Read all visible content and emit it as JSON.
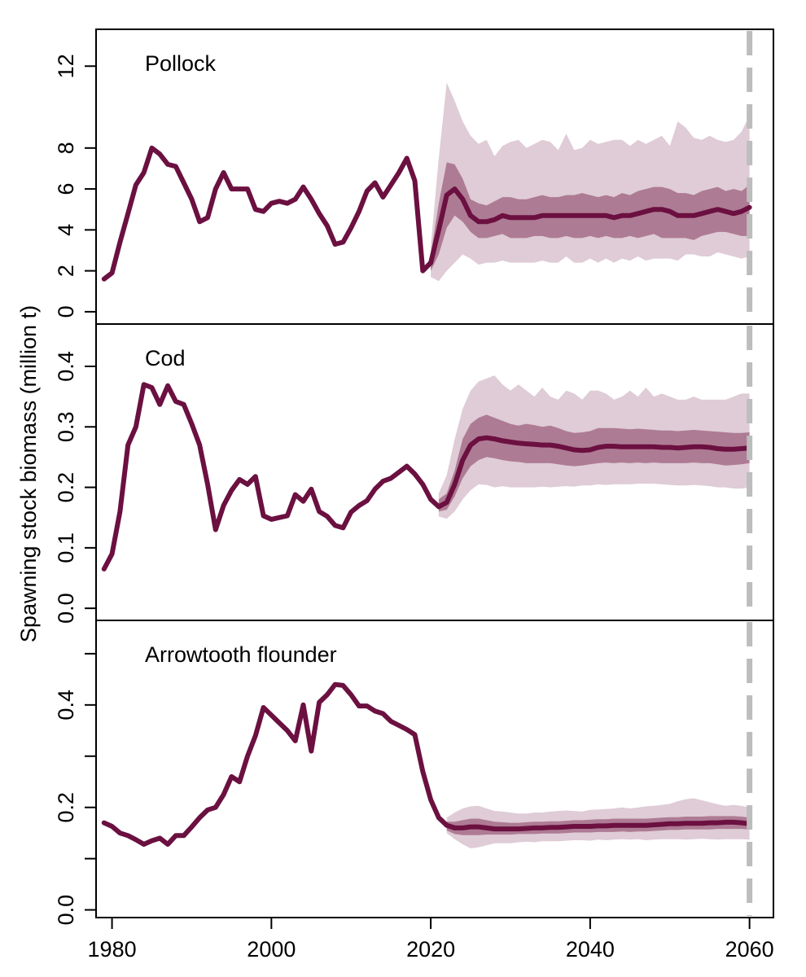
{
  "y_axis_label": "Spawning stock biomass (million t)",
  "colors": {
    "line": "#6b1040",
    "band_inner": "#ae7b94",
    "band_outer": "#dfccd6",
    "vline": "#bdbdbd",
    "axis": "#000000"
  },
  "chart_data": [
    {
      "type": "line",
      "title": "Pollock",
      "xlim": [
        1978,
        2063
      ],
      "ylim": [
        -0.6,
        13.8
      ],
      "x_ticks": [
        1980,
        2000,
        2020,
        2040,
        2060
      ],
      "x_tick_labels": [],
      "y_ticks": [
        0,
        2,
        4,
        6,
        8,
        12
      ],
      "y_tick_labels": [
        "0",
        "2",
        "4",
        "6",
        "8",
        "12"
      ],
      "vline": 2060,
      "historical": {
        "x": [
          1979,
          1980,
          1981,
          1982,
          1983,
          1984,
          1985,
          1986,
          1987,
          1988,
          1989,
          1990,
          1991,
          1992,
          1993,
          1994,
          1995,
          1996,
          1997,
          1998,
          1999,
          2000,
          2001,
          2002,
          2003,
          2004,
          2005,
          2006,
          2007,
          2008,
          2009,
          2010,
          2011,
          2012,
          2013,
          2014,
          2015,
          2016,
          2017,
          2018,
          2019,
          2020
        ],
        "y": [
          1.6,
          1.9,
          3.4,
          4.8,
          6.2,
          6.8,
          8.0,
          7.7,
          7.2,
          7.1,
          6.3,
          5.5,
          4.4,
          4.6,
          6.0,
          6.8,
          6.0,
          6.0,
          6.0,
          5.0,
          4.9,
          5.3,
          5.4,
          5.3,
          5.5,
          6.1,
          5.5,
          4.8,
          4.2,
          3.3,
          3.4,
          4.1,
          4.9,
          5.9,
          6.3,
          5.6,
          6.2,
          6.8,
          7.5,
          6.4,
          2.0,
          2.4
        ]
      },
      "projection": {
        "x": [
          2020,
          2021,
          2022,
          2023,
          2024,
          2025,
          2026,
          2027,
          2028,
          2029,
          2030,
          2031,
          2032,
          2033,
          2034,
          2035,
          2036,
          2037,
          2038,
          2039,
          2040,
          2041,
          2042,
          2043,
          2044,
          2045,
          2046,
          2047,
          2048,
          2049,
          2050,
          2051,
          2052,
          2053,
          2054,
          2055,
          2056,
          2057,
          2058,
          2059,
          2060
        ],
        "median": [
          2.4,
          4.0,
          5.7,
          6.0,
          5.5,
          4.7,
          4.4,
          4.4,
          4.5,
          4.7,
          4.6,
          4.6,
          4.6,
          4.6,
          4.7,
          4.7,
          4.7,
          4.7,
          4.7,
          4.7,
          4.7,
          4.7,
          4.7,
          4.6,
          4.7,
          4.7,
          4.8,
          4.9,
          5.0,
          5.0,
          4.9,
          4.7,
          4.7,
          4.7,
          4.8,
          4.9,
          5.0,
          4.9,
          4.8,
          4.9,
          5.1
        ],
        "lower_inner": [
          2.0,
          2.8,
          4.1,
          4.7,
          4.4,
          3.9,
          3.6,
          3.6,
          3.7,
          3.8,
          3.6,
          3.6,
          3.6,
          3.7,
          3.7,
          3.6,
          3.6,
          3.7,
          3.6,
          3.6,
          3.7,
          3.6,
          3.7,
          3.6,
          3.6,
          3.7,
          3.6,
          3.7,
          3.8,
          3.6,
          3.6,
          3.6,
          3.6,
          3.5,
          3.7,
          3.8,
          3.9,
          3.9,
          3.8,
          3.7,
          3.7
        ],
        "upper_inner": [
          2.8,
          5.3,
          7.3,
          7.2,
          6.5,
          5.5,
          5.3,
          5.2,
          5.4,
          5.6,
          5.6,
          5.5,
          5.5,
          5.6,
          5.7,
          5.6,
          5.6,
          5.7,
          5.7,
          5.8,
          5.7,
          5.6,
          5.7,
          5.6,
          5.8,
          5.7,
          5.9,
          6.0,
          6.1,
          6.1,
          6.0,
          5.8,
          5.8,
          5.7,
          5.9,
          6.0,
          6.1,
          5.9,
          6.0,
          5.9,
          6.2
        ],
        "lower_outer": [
          1.7,
          1.5,
          2.0,
          2.4,
          2.8,
          2.6,
          2.3,
          2.4,
          2.4,
          2.5,
          2.4,
          2.4,
          2.4,
          2.4,
          2.5,
          2.4,
          2.4,
          2.7,
          2.4,
          2.4,
          2.6,
          2.4,
          2.6,
          2.4,
          2.6,
          2.5,
          2.7,
          2.5,
          2.6,
          2.6,
          2.6,
          2.5,
          2.8,
          2.8,
          2.7,
          2.7,
          2.9,
          2.8,
          2.7,
          2.6,
          2.7
        ],
        "upper_outer": [
          3.2,
          7.5,
          11.2,
          10.3,
          9.3,
          8.6,
          8.2,
          8.4,
          7.6,
          8.1,
          8.3,
          8.4,
          8.0,
          8.2,
          8.4,
          8.3,
          7.9,
          8.7,
          7.9,
          8.0,
          8.4,
          8.2,
          8.3,
          8.4,
          8.4,
          8.1,
          8.4,
          8.2,
          8.4,
          8.6,
          8.1,
          9.3,
          9.0,
          8.5,
          8.4,
          8.6,
          8.4,
          8.3,
          8.4,
          8.8,
          9.6
        ]
      }
    },
    {
      "type": "line",
      "title": "Cod",
      "xlim": [
        1978,
        2063
      ],
      "ylim": [
        -0.02,
        0.47
      ],
      "x_ticks": [
        1980,
        2000,
        2020,
        2040,
        2060
      ],
      "x_tick_labels": [],
      "y_ticks": [
        0.0,
        0.1,
        0.2,
        0.3,
        0.4
      ],
      "y_tick_labels": [
        "0.0",
        "0.1",
        "0.2",
        "0.3",
        "0.4"
      ],
      "vline": 2060,
      "historical": {
        "x": [
          1979,
          1980,
          1981,
          1982,
          1983,
          1984,
          1985,
          1986,
          1987,
          1988,
          1989,
          1990,
          1991,
          1992,
          1993,
          1994,
          1995,
          1996,
          1997,
          1998,
          1999,
          2000,
          2001,
          2002,
          2003,
          2004,
          2005,
          2006,
          2007,
          2008,
          2009,
          2010,
          2011,
          2012,
          2013,
          2014,
          2015,
          2016,
          2017,
          2018,
          2019,
          2020,
          2021
        ],
        "y": [
          0.065,
          0.09,
          0.16,
          0.27,
          0.3,
          0.37,
          0.365,
          0.337,
          0.368,
          0.342,
          0.337,
          0.305,
          0.27,
          0.205,
          0.13,
          0.17,
          0.195,
          0.213,
          0.205,
          0.218,
          0.153,
          0.147,
          0.15,
          0.153,
          0.188,
          0.177,
          0.197,
          0.16,
          0.152,
          0.137,
          0.133,
          0.159,
          0.17,
          0.178,
          0.197,
          0.21,
          0.215,
          0.225,
          0.235,
          0.222,
          0.205,
          0.18,
          0.168
        ]
      },
      "projection": {
        "x": [
          2021,
          2022,
          2023,
          2024,
          2025,
          2026,
          2027,
          2028,
          2029,
          2030,
          2031,
          2032,
          2033,
          2034,
          2035,
          2036,
          2037,
          2038,
          2039,
          2040,
          2041,
          2042,
          2043,
          2044,
          2045,
          2046,
          2047,
          2048,
          2049,
          2050,
          2051,
          2052,
          2053,
          2054,
          2055,
          2056,
          2057,
          2058,
          2059,
          2060
        ],
        "median": [
          0.168,
          0.175,
          0.205,
          0.245,
          0.27,
          0.28,
          0.282,
          0.28,
          0.277,
          0.275,
          0.273,
          0.272,
          0.271,
          0.27,
          0.27,
          0.268,
          0.265,
          0.262,
          0.261,
          0.262,
          0.266,
          0.268,
          0.268,
          0.267,
          0.267,
          0.267,
          0.267,
          0.267,
          0.266,
          0.266,
          0.265,
          0.266,
          0.267,
          0.267,
          0.266,
          0.264,
          0.263,
          0.263,
          0.264,
          0.265
        ],
        "lower_inner": [
          0.16,
          0.163,
          0.185,
          0.215,
          0.235,
          0.245,
          0.25,
          0.248,
          0.245,
          0.243,
          0.242,
          0.24,
          0.24,
          0.24,
          0.24,
          0.238,
          0.236,
          0.235,
          0.236,
          0.238,
          0.24,
          0.241,
          0.24,
          0.241,
          0.24,
          0.241,
          0.24,
          0.241,
          0.24,
          0.24,
          0.24,
          0.24,
          0.241,
          0.24,
          0.24,
          0.238,
          0.236,
          0.237,
          0.238,
          0.24
        ],
        "upper_inner": [
          0.18,
          0.19,
          0.228,
          0.28,
          0.305,
          0.315,
          0.32,
          0.315,
          0.31,
          0.305,
          0.302,
          0.305,
          0.303,
          0.3,
          0.302,
          0.298,
          0.293,
          0.29,
          0.291,
          0.293,
          0.298,
          0.298,
          0.298,
          0.297,
          0.296,
          0.297,
          0.296,
          0.295,
          0.294,
          0.294,
          0.293,
          0.294,
          0.295,
          0.294,
          0.293,
          0.292,
          0.291,
          0.29,
          0.29,
          0.291
        ],
        "lower_outer": [
          0.152,
          0.148,
          0.16,
          0.18,
          0.195,
          0.205,
          0.204,
          0.2,
          0.202,
          0.2,
          0.2,
          0.2,
          0.2,
          0.201,
          0.2,
          0.201,
          0.202,
          0.201,
          0.203,
          0.203,
          0.205,
          0.204,
          0.205,
          0.205,
          0.205,
          0.206,
          0.206,
          0.206,
          0.205,
          0.204,
          0.203,
          0.203,
          0.204,
          0.203,
          0.202,
          0.2,
          0.2,
          0.198,
          0.198,
          0.2
        ],
        "upper_outer": [
          0.19,
          0.22,
          0.28,
          0.33,
          0.36,
          0.375,
          0.38,
          0.385,
          0.37,
          0.36,
          0.37,
          0.36,
          0.35,
          0.365,
          0.35,
          0.345,
          0.36,
          0.355,
          0.345,
          0.36,
          0.36,
          0.355,
          0.345,
          0.35,
          0.36,
          0.35,
          0.365,
          0.35,
          0.355,
          0.35,
          0.345,
          0.345,
          0.35,
          0.345,
          0.345,
          0.345,
          0.345,
          0.35,
          0.355,
          0.355
        ]
      }
    },
    {
      "type": "line",
      "title": "Arrowtooth flounder",
      "xlim": [
        1978,
        2063
      ],
      "ylim": [
        -0.015,
        0.565
      ],
      "x_ticks": [
        1980,
        2000,
        2020,
        2040,
        2060
      ],
      "x_tick_labels": [
        "1980",
        "2000",
        "2020",
        "2040",
        "2060"
      ],
      "y_ticks": [
        0.0,
        0.1,
        0.2,
        0.3,
        0.4,
        0.5
      ],
      "y_tick_labels": [
        "0.0",
        "",
        "0.2",
        "",
        "0.4",
        ""
      ],
      "vline": 2060,
      "historical": {
        "x": [
          1979,
          1980,
          1981,
          1982,
          1983,
          1984,
          1985,
          1986,
          1987,
          1988,
          1989,
          1990,
          1991,
          1992,
          1993,
          1994,
          1995,
          1996,
          1997,
          1998,
          1999,
          2000,
          2001,
          2002,
          2003,
          2004,
          2005,
          2006,
          2007,
          2008,
          2009,
          2010,
          2011,
          2012,
          2013,
          2014,
          2015,
          2016,
          2017,
          2018,
          2019,
          2020,
          2021,
          2022,
          2023
        ],
        "y": [
          0.17,
          0.163,
          0.15,
          0.145,
          0.137,
          0.128,
          0.135,
          0.14,
          0.128,
          0.145,
          0.145,
          0.162,
          0.18,
          0.195,
          0.2,
          0.225,
          0.26,
          0.25,
          0.3,
          0.34,
          0.395,
          0.38,
          0.365,
          0.35,
          0.33,
          0.4,
          0.31,
          0.405,
          0.42,
          0.44,
          0.438,
          0.42,
          0.398,
          0.398,
          0.388,
          0.383,
          0.368,
          0.36,
          0.352,
          0.342,
          0.27,
          0.215,
          0.18,
          0.165,
          0.16
        ]
      },
      "projection": {
        "x": [
          2022,
          2023,
          2024,
          2025,
          2026,
          2027,
          2028,
          2029,
          2030,
          2031,
          2032,
          2033,
          2034,
          2035,
          2036,
          2037,
          2038,
          2039,
          2040,
          2041,
          2042,
          2043,
          2044,
          2045,
          2046,
          2047,
          2048,
          2049,
          2050,
          2051,
          2052,
          2053,
          2054,
          2055,
          2056,
          2057,
          2058,
          2059,
          2060
        ],
        "median": [
          0.165,
          0.16,
          0.16,
          0.162,
          0.162,
          0.16,
          0.158,
          0.158,
          0.158,
          0.158,
          0.159,
          0.16,
          0.16,
          0.161,
          0.161,
          0.162,
          0.163,
          0.163,
          0.163,
          0.164,
          0.164,
          0.165,
          0.165,
          0.165,
          0.165,
          0.165,
          0.166,
          0.167,
          0.168,
          0.168,
          0.169,
          0.169,
          0.169,
          0.17,
          0.17,
          0.171,
          0.171,
          0.17,
          0.168
        ],
        "lower_inner": [
          0.155,
          0.148,
          0.146,
          0.146,
          0.146,
          0.147,
          0.147,
          0.147,
          0.147,
          0.148,
          0.148,
          0.148,
          0.149,
          0.149,
          0.149,
          0.15,
          0.151,
          0.151,
          0.151,
          0.152,
          0.152,
          0.152,
          0.153,
          0.152,
          0.153,
          0.153,
          0.154,
          0.155,
          0.156,
          0.156,
          0.157,
          0.157,
          0.157,
          0.157,
          0.158,
          0.158,
          0.158,
          0.158,
          0.157
        ],
        "upper_inner": [
          0.172,
          0.172,
          0.175,
          0.178,
          0.178,
          0.175,
          0.172,
          0.171,
          0.17,
          0.17,
          0.171,
          0.172,
          0.172,
          0.173,
          0.173,
          0.174,
          0.175,
          0.175,
          0.176,
          0.177,
          0.177,
          0.178,
          0.178,
          0.178,
          0.178,
          0.178,
          0.179,
          0.18,
          0.181,
          0.181,
          0.182,
          0.182,
          0.182,
          0.183,
          0.183,
          0.183,
          0.183,
          0.182,
          0.18
        ],
        "lower_outer": [
          0.15,
          0.138,
          0.128,
          0.12,
          0.122,
          0.126,
          0.13,
          0.13,
          0.13,
          0.132,
          0.133,
          0.132,
          0.134,
          0.134,
          0.134,
          0.135,
          0.136,
          0.136,
          0.135,
          0.137,
          0.136,
          0.137,
          0.138,
          0.137,
          0.138,
          0.136,
          0.137,
          0.138,
          0.138,
          0.138,
          0.137,
          0.138,
          0.139,
          0.138,
          0.137,
          0.138,
          0.138,
          0.138,
          0.137
        ],
        "upper_outer": [
          0.18,
          0.19,
          0.198,
          0.202,
          0.203,
          0.198,
          0.193,
          0.192,
          0.19,
          0.188,
          0.188,
          0.19,
          0.19,
          0.192,
          0.193,
          0.194,
          0.193,
          0.192,
          0.195,
          0.196,
          0.197,
          0.198,
          0.2,
          0.198,
          0.2,
          0.202,
          0.203,
          0.205,
          0.207,
          0.212,
          0.216,
          0.218,
          0.214,
          0.21,
          0.206,
          0.203,
          0.205,
          0.203,
          0.2
        ]
      }
    }
  ]
}
